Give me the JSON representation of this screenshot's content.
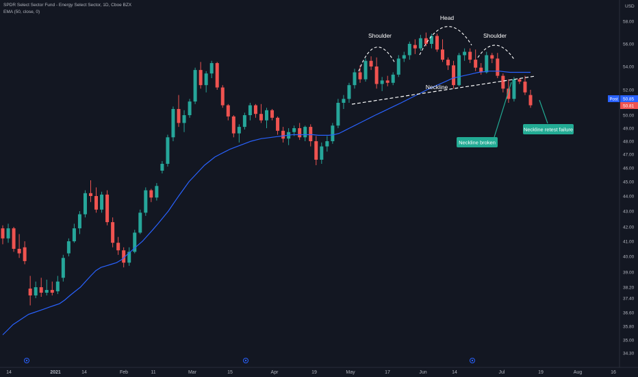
{
  "header": {
    "title": "SPDR Select Sector Fund - Energy Select Sector, 1D, Cboe BZX",
    "indicator": "EMA (50, close, 0)"
  },
  "currency": "USD",
  "price_badges": {
    "post_label": "Post",
    "post_value": "50.85",
    "last_value": "50.81"
  },
  "colors": {
    "background": "#131722",
    "up": "#26a69a",
    "down": "#ef5350",
    "ema": "#2962ff",
    "annotation_box": "#22ab94",
    "grid": "#1e2230"
  },
  "chart_data": {
    "type": "candlestick",
    "xlabels": [
      "14",
      "2021",
      "14",
      "Feb",
      "11",
      "Mar",
      "15",
      "Apr",
      "19",
      "May",
      "17",
      "Jun",
      "14",
      "Jul",
      "19",
      "Aug",
      "16"
    ],
    "yticks": [
      34.3,
      35.0,
      35.8,
      36.6,
      37.4,
      38.2,
      39.0,
      40.0,
      41.0,
      42.0,
      43.0,
      44.0,
      45.0,
      46.0,
      47.0,
      48.0,
      49.0,
      50.0,
      51.0,
      52.0,
      54.0,
      56.0,
      58.0
    ],
    "ytick_labels": [
      "34.30",
      "35.00",
      "35.80",
      "36.60",
      "37.40",
      "38.20",
      "39.00",
      "40.00",
      "41.00",
      "42.00",
      "43.00",
      "44.00",
      "45.00",
      "46.00",
      "47.00",
      "48.00",
      "49.00",
      "50.00",
      "51.00",
      "52.00",
      "54.00",
      "56.00",
      "58.00"
    ],
    "series": [
      {
        "name": "EMA (50, close, 0)",
        "values": [
          35.3,
          35.6,
          35.9,
          36.1,
          36.3,
          36.5,
          36.6,
          36.7,
          36.8,
          36.9,
          37.0,
          37.1,
          37.3,
          37.6,
          37.9,
          38.2,
          38.5,
          38.8,
          39.1,
          39.3,
          39.4,
          39.5,
          39.6,
          39.8,
          40.1,
          40.4,
          40.7,
          41.0,
          41.4,
          41.8,
          42.2,
          42.6,
          43.0,
          43.5,
          44.0,
          44.5,
          45.0,
          45.4,
          45.8,
          46.2,
          46.5,
          46.8,
          47.0,
          47.2,
          47.4,
          47.55,
          47.7,
          47.85,
          48.0,
          48.1,
          48.2,
          48.25,
          48.3,
          48.35,
          48.4,
          48.45,
          48.5,
          48.5,
          48.5,
          48.5,
          48.5,
          48.45,
          48.45,
          48.45,
          48.5,
          48.6,
          48.8,
          49.0,
          49.2,
          49.4,
          49.6,
          49.8,
          50.0,
          50.2,
          50.4,
          50.6,
          50.8,
          51.0,
          51.2,
          51.4,
          51.6,
          51.8,
          52.0,
          52.2,
          52.4,
          52.6,
          52.8,
          53.0,
          53.1,
          53.2,
          53.3,
          53.4,
          53.5,
          53.55,
          53.6,
          53.6,
          53.6,
          53.55,
          53.5,
          53.5,
          53.5,
          53.5,
          53.5
        ]
      }
    ],
    "candles": [
      [
        41.9,
        42.1,
        40.8,
        41.2
      ],
      [
        41.2,
        42.2,
        40.9,
        41.9
      ],
      [
        41.9,
        42.0,
        40.3,
        40.5
      ],
      [
        40.5,
        41.5,
        39.9,
        40.2
      ],
      [
        40.6,
        41.0,
        39.5,
        39.7
      ],
      [
        38.1,
        38.8,
        37.0,
        37.6
      ],
      [
        37.6,
        38.5,
        37.4,
        38.2
      ],
      [
        38.2,
        38.7,
        37.5,
        37.8
      ],
      [
        37.8,
        38.6,
        37.6,
        38.0
      ],
      [
        38.0,
        38.5,
        37.6,
        37.8
      ],
      [
        37.9,
        38.8,
        37.7,
        38.5
      ],
      [
        38.7,
        40.1,
        38.5,
        39.9
      ],
      [
        40.2,
        41.2,
        40.0,
        41.0
      ],
      [
        41.0,
        42.2,
        40.9,
        41.9
      ],
      [
        41.9,
        43.0,
        41.5,
        42.8
      ],
      [
        42.8,
        44.4,
        42.6,
        44.2
      ],
      [
        44.2,
        45.1,
        43.6,
        44.0
      ],
      [
        44.0,
        44.6,
        42.9,
        43.1
      ],
      [
        43.1,
        44.3,
        42.9,
        44.1
      ],
      [
        44.1,
        44.4,
        42.1,
        42.3
      ],
      [
        42.3,
        42.6,
        40.6,
        40.9
      ],
      [
        40.9,
        41.3,
        40.1,
        40.4
      ],
      [
        40.4,
        40.6,
        39.3,
        39.6
      ],
      [
        39.6,
        40.6,
        39.4,
        40.3
      ],
      [
        40.3,
        41.8,
        40.2,
        41.6
      ],
      [
        41.6,
        43.1,
        41.5,
        42.9
      ],
      [
        42.9,
        44.6,
        42.7,
        44.4
      ],
      [
        44.4,
        44.5,
        43.6,
        43.9
      ],
      [
        43.9,
        44.9,
        43.7,
        44.7
      ],
      [
        45.8,
        46.5,
        45.6,
        46.3
      ],
      [
        46.3,
        48.5,
        46.1,
        48.3
      ],
      [
        48.3,
        50.7,
        48.0,
        50.5
      ],
      [
        50.5,
        51.6,
        49.1,
        49.4
      ],
      [
        49.4,
        50.4,
        48.7,
        50.0
      ],
      [
        50.0,
        51.3,
        49.8,
        51.1
      ],
      [
        51.1,
        53.9,
        50.9,
        53.7
      ],
      [
        53.7,
        54.4,
        52.1,
        52.4
      ],
      [
        52.4,
        53.6,
        51.8,
        53.4
      ],
      [
        53.4,
        54.5,
        53.0,
        54.3
      ],
      [
        54.3,
        54.4,
        52.0,
        52.2
      ],
      [
        52.2,
        52.4,
        50.6,
        50.8
      ],
      [
        50.8,
        50.9,
        49.6,
        49.9
      ],
      [
        49.9,
        50.0,
        48.3,
        48.6
      ],
      [
        48.6,
        49.3,
        47.9,
        49.1
      ],
      [
        49.1,
        50.2,
        48.9,
        50.0
      ],
      [
        50.0,
        51.0,
        49.6,
        50.8
      ],
      [
        50.8,
        50.9,
        49.8,
        50.1
      ],
      [
        50.1,
        50.9,
        49.4,
        49.6
      ],
      [
        49.6,
        50.6,
        49.0,
        50.4
      ],
      [
        50.4,
        50.5,
        49.6,
        49.8
      ],
      [
        49.8,
        49.9,
        48.5,
        48.8
      ],
      [
        48.8,
        49.1,
        47.9,
        48.2
      ],
      [
        48.2,
        49.0,
        47.7,
        48.7
      ],
      [
        48.7,
        49.2,
        48.4,
        49.0
      ],
      [
        49.0,
        49.4,
        48.1,
        48.3
      ],
      [
        48.3,
        49.2,
        48.0,
        49.1
      ],
      [
        49.1,
        49.3,
        47.6,
        48.0
      ],
      [
        48.0,
        48.4,
        46.2,
        46.6
      ],
      [
        46.6,
        47.9,
        46.3,
        47.6
      ],
      [
        47.6,
        48.4,
        47.2,
        48.0
      ],
      [
        48.0,
        49.4,
        47.8,
        49.2
      ],
      [
        49.2,
        51.3,
        49.0,
        51.0
      ],
      [
        51.0,
        51.6,
        50.5,
        51.3
      ],
      [
        51.3,
        52.6,
        51.0,
        52.4
      ],
      [
        52.4,
        53.8,
        52.1,
        53.5
      ],
      [
        53.5,
        54.1,
        52.6,
        52.9
      ],
      [
        52.9,
        54.7,
        52.7,
        54.5
      ],
      [
        54.5,
        54.9,
        53.7,
        54.0
      ],
      [
        54.0,
        54.8,
        52.1,
        52.5
      ],
      [
        52.5,
        53.1,
        51.9,
        52.8
      ],
      [
        52.8,
        53.2,
        52.3,
        52.6
      ],
      [
        52.6,
        53.5,
        52.4,
        53.3
      ],
      [
        53.3,
        55.0,
        53.1,
        54.7
      ],
      [
        54.7,
        55.3,
        54.4,
        55.0
      ],
      [
        55.0,
        56.2,
        54.6,
        56.0
      ],
      [
        55.9,
        56.4,
        55.1,
        55.6
      ],
      [
        55.6,
        56.8,
        55.4,
        56.5
      ],
      [
        56.5,
        57.0,
        55.8,
        56.0
      ],
      [
        56.0,
        56.9,
        55.6,
        56.7
      ],
      [
        56.7,
        56.9,
        55.3,
        55.5
      ],
      [
        55.5,
        56.4,
        54.4,
        54.6
      ],
      [
        54.6,
        54.8,
        53.7,
        54.1
      ],
      [
        54.1,
        54.5,
        52.1,
        52.4
      ],
      [
        52.4,
        55.2,
        52.3,
        55.0
      ],
      [
        55.0,
        55.6,
        54.5,
        55.3
      ],
      [
        55.3,
        55.6,
        54.3,
        54.6
      ],
      [
        54.6,
        55.5,
        53.6,
        53.9
      ],
      [
        53.9,
        54.3,
        53.3,
        53.5
      ],
      [
        53.5,
        55.3,
        53.4,
        55.0
      ],
      [
        55.0,
        55.2,
        54.3,
        54.7
      ],
      [
        54.7,
        55.2,
        53.0,
        53.2
      ],
      [
        53.2,
        53.4,
        51.8,
        52.1
      ],
      [
        52.1,
        52.9,
        51.0,
        51.3
      ],
      [
        51.3,
        53.1,
        51.1,
        52.9
      ],
      [
        52.9,
        53.0,
        52.5,
        52.7
      ],
      [
        52.7,
        53.2,
        51.6,
        51.8
      ],
      [
        51.6,
        52.0,
        50.6,
        50.8
      ]
    ],
    "annotations": {
      "pattern_labels": [
        "Shoulder",
        "Head",
        "Shoulder"
      ],
      "neckline": "Neckline",
      "callouts": [
        "Neckline broken",
        "Neckline retest failure"
      ]
    }
  }
}
